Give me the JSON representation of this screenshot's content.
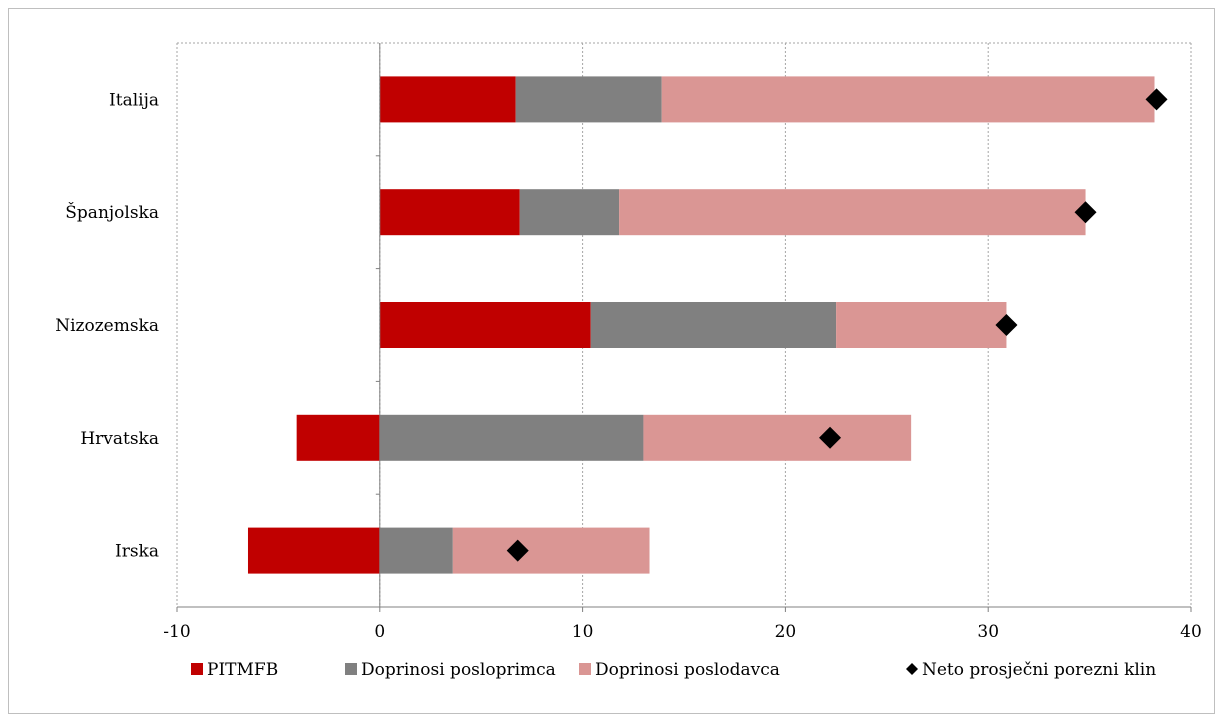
{
  "chart_data": {
    "type": "bar",
    "orientation": "horizontal",
    "stacked": true,
    "categories": [
      "Italija",
      "Španjolska",
      "Nizozemska",
      "Hrvatska",
      "Irska"
    ],
    "series": [
      {
        "name": "PITMFB",
        "values": [
          6.7,
          6.9,
          10.4,
          -4.1,
          -6.5
        ],
        "color": "#c00000"
      },
      {
        "name": "Doprinosi posloprimca",
        "values": [
          7.2,
          4.9,
          12.1,
          13.0,
          3.6
        ],
        "color": "#808080"
      },
      {
        "name": "Doprinosi poslodavca",
        "values": [
          24.3,
          23.0,
          8.4,
          13.2,
          9.7
        ],
        "color": "#da9694"
      }
    ],
    "markers": {
      "name": "Neto prosječni porezni klin",
      "values": [
        38.3,
        34.8,
        30.9,
        22.2,
        6.8
      ],
      "color": "#000000"
    },
    "xlim": [
      -10,
      40
    ],
    "xticks": [
      -10,
      0,
      10,
      20,
      30,
      40
    ],
    "grid": true,
    "legend": "bottom"
  }
}
